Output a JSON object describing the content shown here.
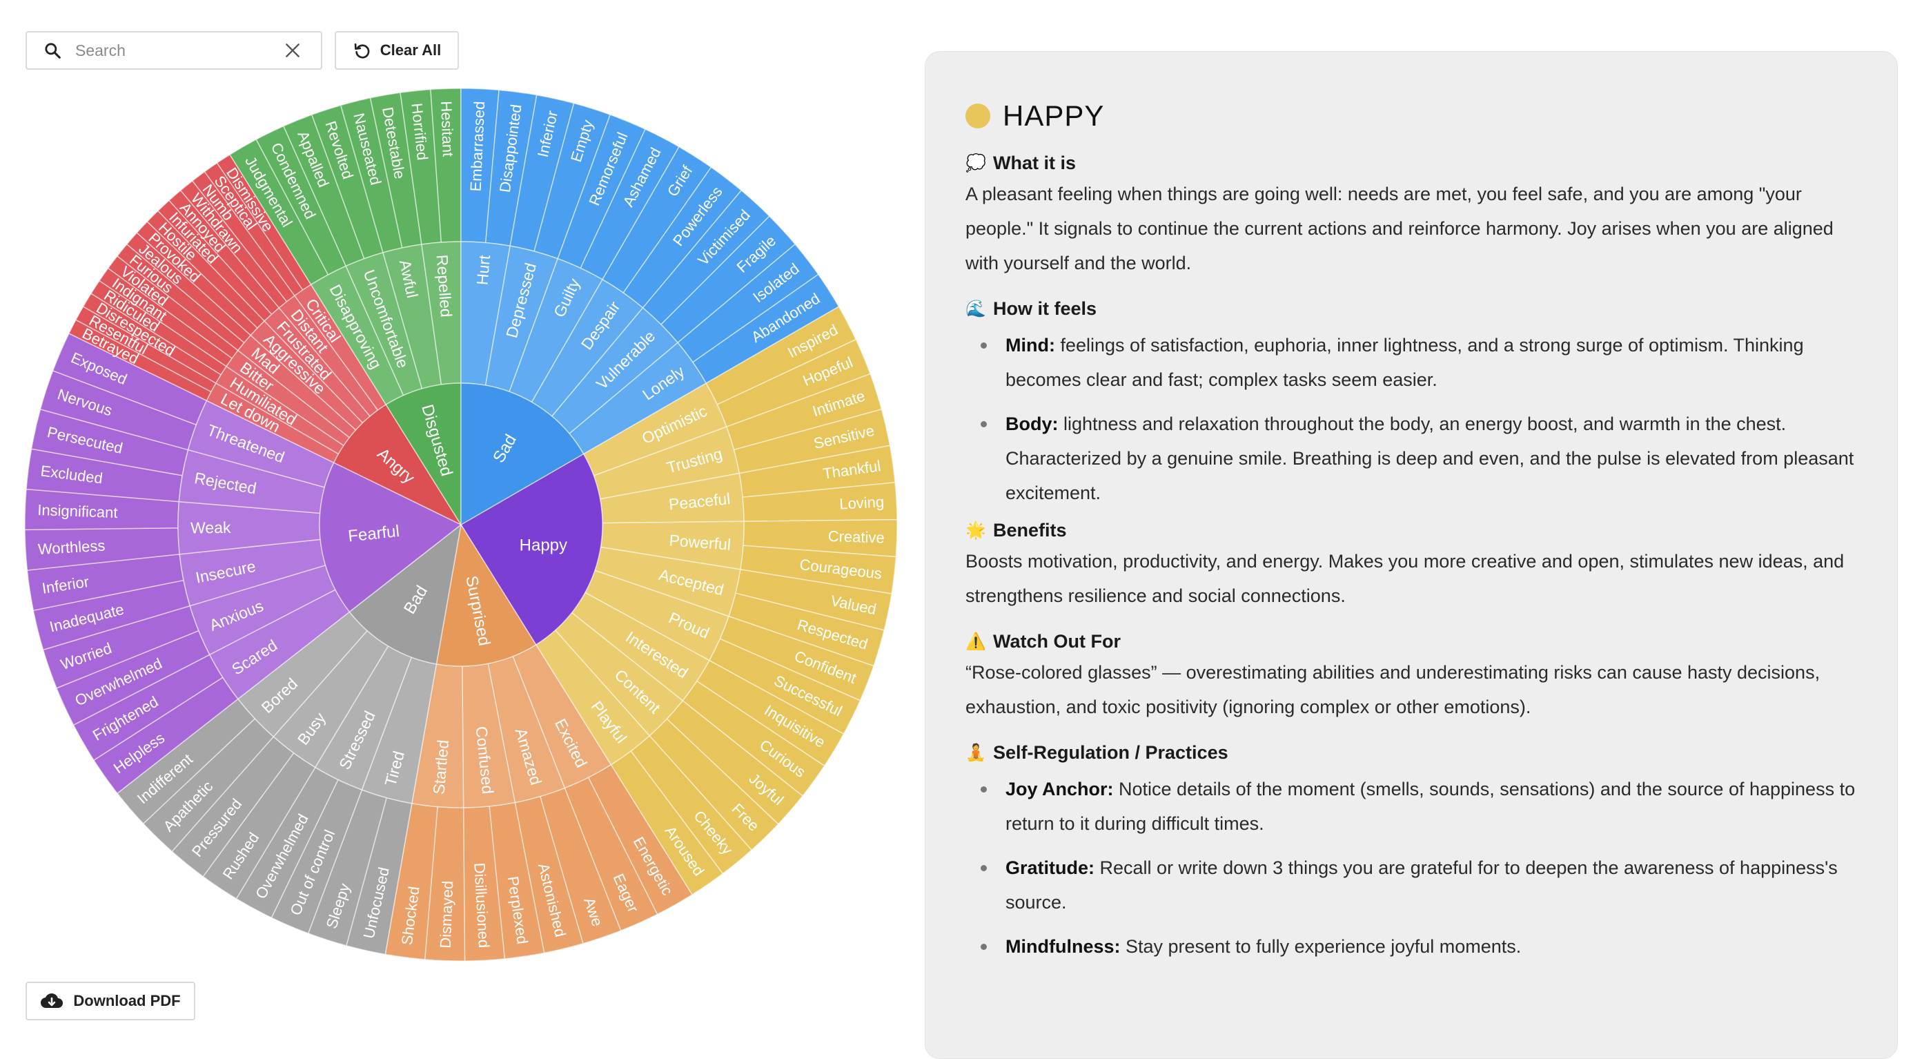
{
  "toolbar": {
    "search_placeholder": "Search",
    "search_value": "",
    "clear_all_label": "Clear All",
    "download_label": "Download PDF"
  },
  "wheel": {
    "core_labels": [
      "Happy",
      "Surprised",
      "Bad",
      "Fearful",
      "Angry",
      "Disgusted",
      "Sad"
    ],
    "groups": [
      {
        "core": "Happy",
        "color": "#e8c55a",
        "core_color": "#7b3fd4",
        "span": [
          60,
          148
        ],
        "mid": [
          {
            "label": "Optimistic",
            "outer": [
              "Inspired",
              "Hopeful"
            ]
          },
          {
            "label": "Trusting",
            "outer": [
              "Intimate",
              "Sensitive"
            ]
          },
          {
            "label": "Peaceful",
            "outer": [
              "Thankful",
              "Loving"
            ]
          },
          {
            "label": "Powerful",
            "outer": [
              "Creative",
              "Courageous"
            ]
          },
          {
            "label": "Accepted",
            "outer": [
              "Valued",
              "Respected"
            ]
          },
          {
            "label": "Proud",
            "outer": [
              "Confident",
              "Successful"
            ]
          },
          {
            "label": "Interested",
            "outer": [
              "Inquisitive",
              "Curious"
            ]
          },
          {
            "label": "Content",
            "outer": [
              "Joyful",
              "Free"
            ]
          },
          {
            "label": "Playful",
            "outer": [
              "Cheeky",
              "Aroused"
            ]
          }
        ]
      },
      {
        "core": "Surprised",
        "color": "#eba068",
        "core_color": "#e7995a",
        "span": [
          148,
          190
        ],
        "mid": [
          {
            "label": "Excited",
            "outer": [
              "Energetic",
              "Eager"
            ]
          },
          {
            "label": "Amazed",
            "outer": [
              "Awe",
              "Astonished"
            ]
          },
          {
            "label": "Confused",
            "outer": [
              "Perplexed",
              "Disillusioned"
            ]
          },
          {
            "label": "Startled",
            "outer": [
              "Dismayed",
              "Shocked"
            ]
          }
        ]
      },
      {
        "core": "Bad",
        "color": "#a6a6a6",
        "core_color": "#9e9e9e",
        "span": [
          190,
          232
        ],
        "mid": [
          {
            "label": "Tired",
            "outer": [
              "Unfocused",
              "Sleepy"
            ]
          },
          {
            "label": "Stressed",
            "outer": [
              "Out of control",
              "Overwhelmed"
            ]
          },
          {
            "label": "Busy",
            "outer": [
              "Rushed",
              "Pressured"
            ]
          },
          {
            "label": "Bored",
            "outer": [
              "Apathetic",
              "Indifferent"
            ]
          }
        ]
      },
      {
        "core": "Fearful",
        "color": "#a867d9",
        "core_color": "#a463d6",
        "span": [
          232,
          296
        ],
        "mid": [
          {
            "label": "Scared",
            "outer": [
              "Helpless",
              "Frightened"
            ]
          },
          {
            "label": "Anxious",
            "outer": [
              "Overwhelmed",
              "Worried"
            ]
          },
          {
            "label": "Insecure",
            "outer": [
              "Inadequate",
              "Inferior"
            ]
          },
          {
            "label": "Weak",
            "outer": [
              "Worthless",
              "Insignificant"
            ]
          },
          {
            "label": "Rejected",
            "outer": [
              "Excluded",
              "Persecuted"
            ]
          },
          {
            "label": "Threatened",
            "outer": [
              "Nervous",
              "Exposed"
            ]
          }
        ]
      },
      {
        "core": "Angry",
        "color": "#e0555a",
        "core_color": "#dc4f52",
        "span": [
          296,
          328
        ],
        "mid": [
          {
            "label": "Let down",
            "outer": [
              "Betrayed",
              "Resentful"
            ]
          },
          {
            "label": "Humiliated",
            "outer": [
              "Disrespected",
              "Ridiculed"
            ]
          },
          {
            "label": "Bitter",
            "outer": [
              "Indignant",
              "Violated"
            ]
          },
          {
            "label": "Mad",
            "outer": [
              "Furious",
              "Jealous"
            ]
          },
          {
            "label": "Aggressive",
            "outer": [
              "Provoked",
              "Hostile"
            ]
          },
          {
            "label": "Frustrated",
            "outer": [
              "Infuriated",
              "Annoyed"
            ]
          },
          {
            "label": "Distant",
            "outer": [
              "Withdrawn",
              "Numb"
            ]
          },
          {
            "label": "Critical",
            "outer": [
              "Sceptical",
              "Dismissive"
            ]
          }
        ]
      },
      {
        "core": "Disgusted",
        "color": "#5fb360",
        "core_color": "#56ad57",
        "span": [
          328,
          360
        ],
        "mid": [
          {
            "label": "Disapproving",
            "outer": [
              "Judgmental",
              "Condemned"
            ]
          },
          {
            "label": "Uncomfortable",
            "outer": [
              "Appalled",
              "Revolted"
            ]
          },
          {
            "label": "Awful",
            "outer": [
              "Nauseated",
              "Detestable"
            ]
          },
          {
            "label": "Repelled",
            "outer": [
              "Horrified",
              "Hesitant"
            ]
          }
        ]
      },
      {
        "core": "Sad",
        "color": "#4b9ff0",
        "core_color": "#3f95ec",
        "span": [
          0,
          60
        ],
        "mid": [
          {
            "label": "Hurt",
            "outer": [
              "Embarrassed",
              "Disappointed"
            ]
          },
          {
            "label": "Depressed",
            "outer": [
              "Inferior",
              "Empty"
            ]
          },
          {
            "label": "Guilty",
            "outer": [
              "Remorseful",
              "Ashamed"
            ]
          },
          {
            "label": "Despair",
            "outer": [
              "Grief",
              "Powerless"
            ]
          },
          {
            "label": "Vulnerable",
            "outer": [
              "Victimised",
              "Fragile"
            ]
          },
          {
            "label": "Lonely",
            "outer": [
              "Isolated",
              "Abandoned"
            ]
          }
        ]
      }
    ]
  },
  "panel": {
    "title": "HAPPY",
    "title_color": "#e8c55a",
    "what": {
      "emoji": "💭",
      "heading": "What it is",
      "text": "A pleasant feeling when things are going well: needs are met, you feel safe, and you are among \"your people.\" It signals to continue the current actions and reinforce harmony. Joy arises when you are aligned with yourself and the world."
    },
    "feels": {
      "emoji": "🌊",
      "heading": "How it feels",
      "items": [
        {
          "label": "Mind:",
          "text": " feelings of satisfaction, euphoria, inner lightness, and a strong surge of optimism. Thinking becomes clear and fast; complex tasks seem easier."
        },
        {
          "label": "Body:",
          "text": " lightness and relaxation throughout the body, an energy boost, and warmth in the chest. Characterized by a genuine smile. Breathing is deep and even, and the pulse is elevated from pleasant excitement."
        }
      ]
    },
    "benefits": {
      "emoji": "🌟",
      "heading": "Benefits",
      "text": "Boosts motivation, productivity, and energy. Makes you more creative and open, stimulates new ideas, and strengthens resilience and social connections."
    },
    "watch": {
      "emoji": "⚠️",
      "heading": "Watch Out For",
      "text": "“Rose-colored glasses” — overestimating abilities and underestimating risks can cause hasty decisions, exhaustion, and toxic positivity (ignoring complex or other emotions)."
    },
    "practices": {
      "emoji": "🧘",
      "heading": "Self-Regulation / Practices",
      "items": [
        {
          "label": "Joy Anchor:",
          "text": " Notice details of the moment (smells, sounds, sensations) and the source of happiness to return to it during difficult times."
        },
        {
          "label": "Gratitude:",
          "text": " Recall or write down 3 things you are grateful for to deepen the awareness of happiness's source."
        },
        {
          "label": "Mindfulness:",
          "text": " Stay present to fully experience joyful moments."
        }
      ]
    }
  }
}
